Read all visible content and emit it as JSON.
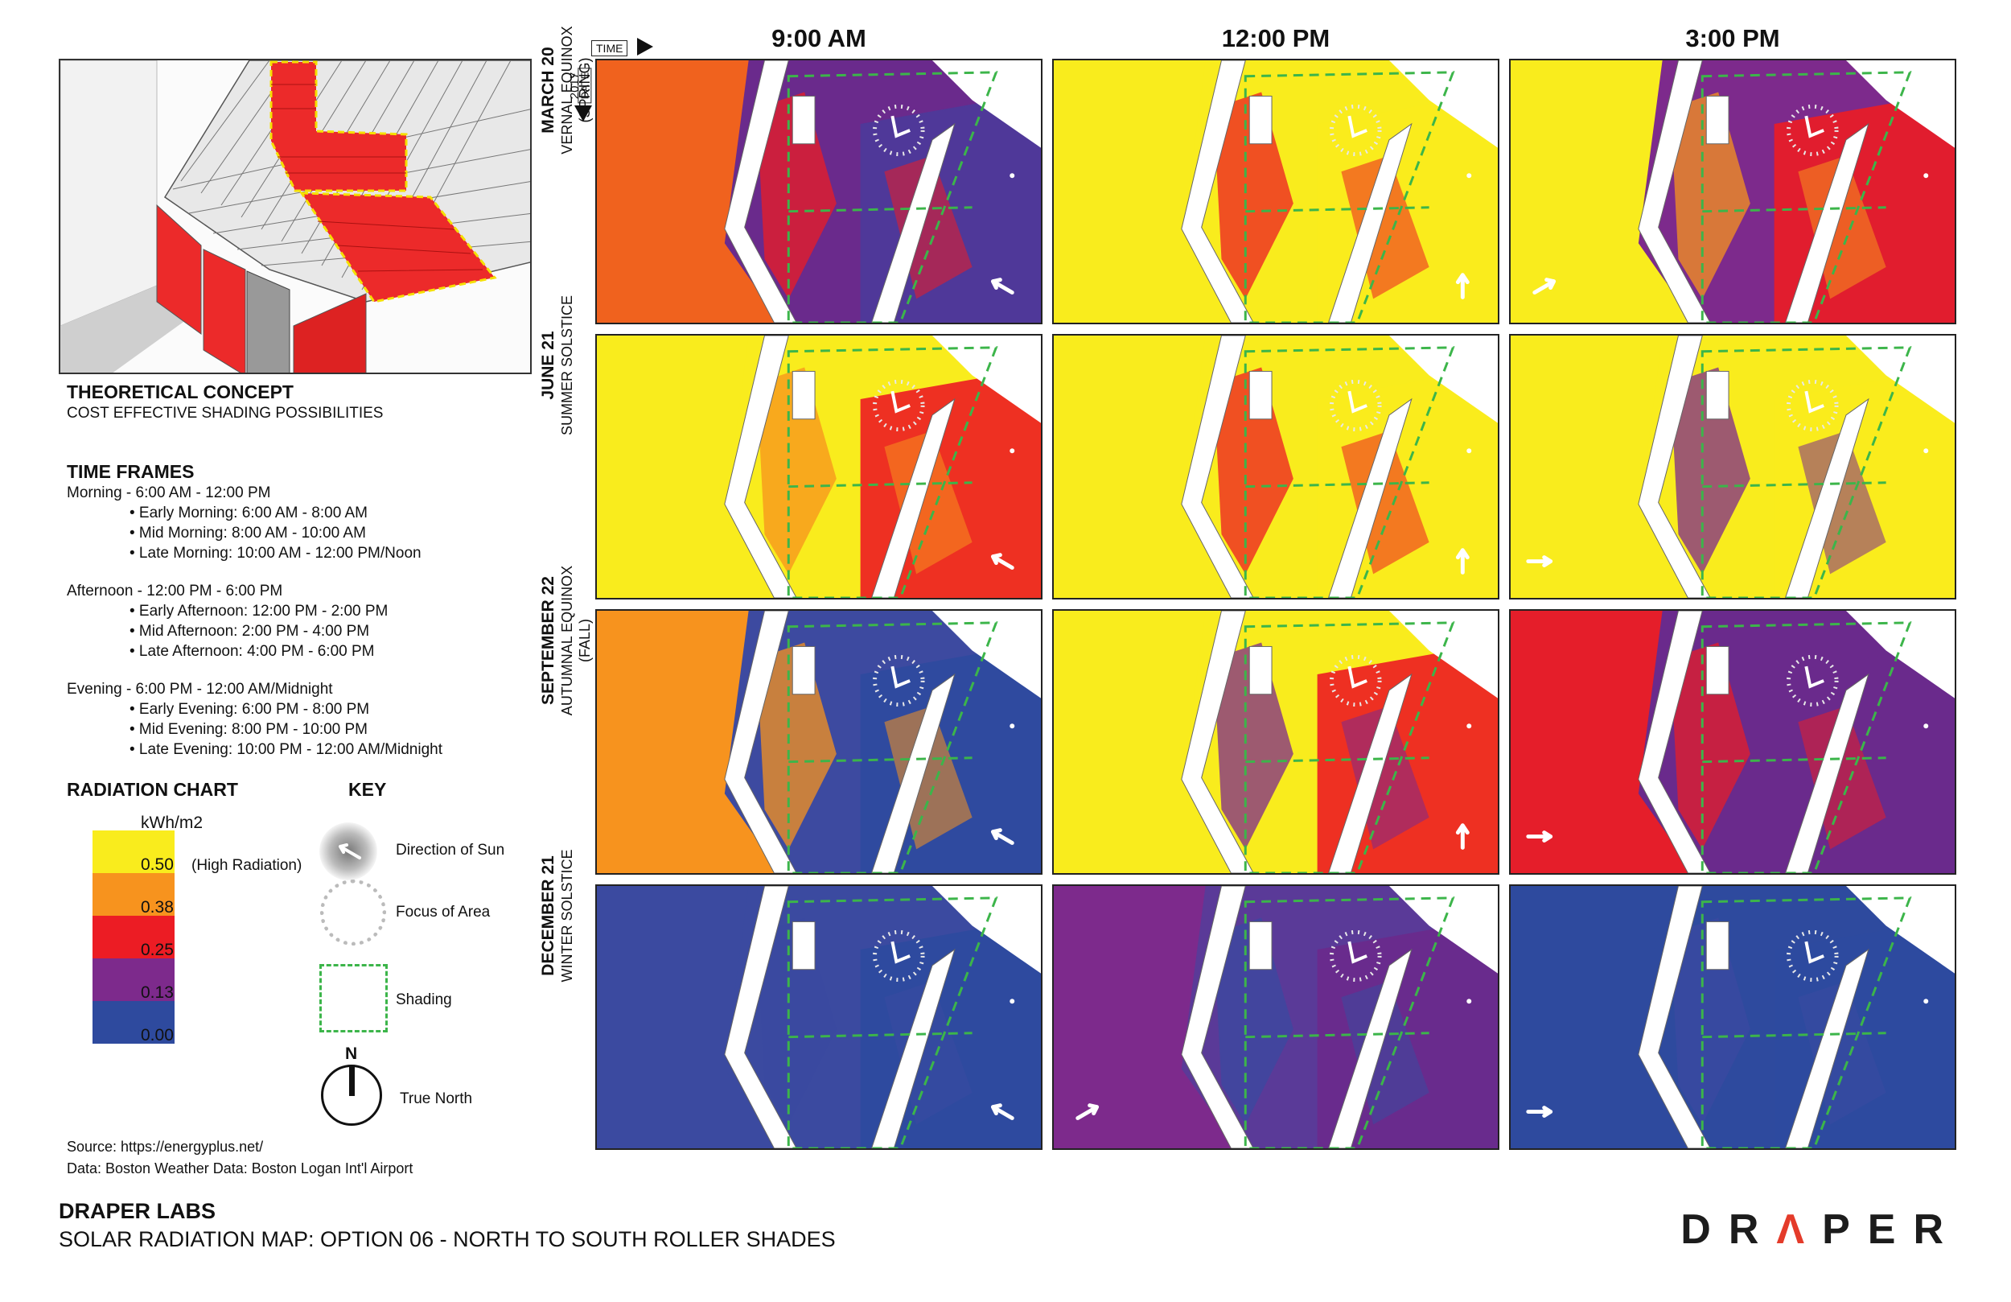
{
  "concept": {
    "title": "THEORETICAL CONCEPT",
    "subtitle": "COST EFFECTIVE SHADING POSSIBILITIES"
  },
  "time_frames": {
    "title": "TIME FRAMES",
    "morning": "Morning - 6:00 AM - 12:00 PM",
    "morning_items": [
      "• Early Morning: 6:00 AM - 8:00 AM",
      "• Mid Morning: 8:00 AM - 10:00 AM",
      "• Late Morning: 10:00 AM - 12:00 PM/Noon"
    ],
    "afternoon": "Afternoon - 12:00 PM - 6:00 PM",
    "afternoon_items": [
      "• Early Afternoon: 12:00 PM - 2:00 PM",
      "• Mid Afternoon: 2:00 PM - 4:00 PM",
      "• Late Afternoon: 4:00 PM - 6:00 PM"
    ],
    "evening": "Evening - 6:00 PM - 12:00 AM/Midnight",
    "evening_items": [
      "• Early Evening: 6:00 PM - 8:00 PM",
      "• Mid Evening: 8:00 PM - 10:00 PM",
      "• Late Evening: 10:00 PM - 12:00 AM/Midnight"
    ]
  },
  "radiation_chart": {
    "title": "RADIATION CHART",
    "unit": "kWh/m2",
    "high_note": "(High Radiation)",
    "ticks": [
      "0.50",
      "0.38",
      "0.25",
      "0.13",
      "0.00"
    ],
    "colors": [
      "#f9ec1d",
      "#f7931e",
      "#ec1c24",
      "#7d2a8c",
      "#2e4a9e"
    ]
  },
  "key": {
    "title": "KEY",
    "sun": "Direction of Sun",
    "focus": "Focus of Area",
    "shading": "Shading",
    "north_letter": "N",
    "north": "True North"
  },
  "source": {
    "line1": "Source: https://energyplus.net/",
    "line2": "Data: Boston Weather Data: Boston Logan Int'l Airport"
  },
  "footer": {
    "title": "DRAPER LABS",
    "subtitle": "SOLAR RADIATION MAP: OPTION 06 - NORTH TO SOUTH ROLLER SHADES",
    "logo_pre": "DR",
    "logo_mid": "Λ",
    "logo_post": "PER"
  },
  "axis": {
    "time": "TIME",
    "date": "DATE",
    "year": "2017"
  },
  "columns": [
    "9:00 AM",
    "12:00 PM",
    "3:00 PM"
  ],
  "rows": [
    {
      "date": "MARCH 20",
      "event": "VERNAL EQUINOX",
      "extra": "(SPRING)"
    },
    {
      "date": "JUNE 21",
      "event": "SUMMER SOLSTICE",
      "extra": ""
    },
    {
      "date": "SEPTEMBER 22",
      "event": "AUTUMNAL EQUINOX",
      "extra": "(FALL)"
    },
    {
      "date": "DECEMBER 21",
      "event": "WINTER SOLSTICE",
      "extra": ""
    }
  ],
  "panels": [
    [
      {
        "left": "#f0621e",
        "mid": "#6a2a8c",
        "right": "#4c3a9a",
        "accent": "#ec1c24",
        "sun": "nw"
      },
      {
        "left": "#f9ec1d",
        "mid": "#f9ec1d",
        "right": "#f9ec1d",
        "accent": "#ec1c24",
        "sun": "n"
      },
      {
        "left": "#f9ec1d",
        "mid": "#7d2a8c",
        "right": "#ec1c24",
        "accent": "#f7931e",
        "sun": "ne"
      }
    ],
    [
      {
        "left": "#f9ec1d",
        "mid": "#f9ec1d",
        "right": "#ec1c24",
        "accent": "#f7931e",
        "sun": "nw"
      },
      {
        "left": "#f9ec1d",
        "mid": "#f9ec1d",
        "right": "#f9ec1d",
        "accent": "#ec1c24",
        "sun": "n"
      },
      {
        "left": "#f9ec1d",
        "mid": "#f9ec1d",
        "right": "#f9ec1d",
        "accent": "#7d2a8c",
        "sun": "e"
      }
    ],
    [
      {
        "left": "#f7931e",
        "mid": "#3d4aa0",
        "right": "#2e4a9e",
        "accent": "#f7931e",
        "sun": "nw"
      },
      {
        "left": "#f9ec1d",
        "mid": "#f9ec1d",
        "right": "#ec1c24",
        "accent": "#7d2a8c",
        "sun": "n"
      },
      {
        "left": "#e51e2a",
        "mid": "#6a2a8c",
        "right": "#6a2a8c",
        "accent": "#e51e2a",
        "sun": "e"
      }
    ],
    [
      {
        "left": "#3b4aa0",
        "mid": "#3b4aa0",
        "right": "#2e4a9e",
        "accent": "#3b4aa0",
        "sun": "nw"
      },
      {
        "left": "#7d2a8c",
        "mid": "#5a3a98",
        "right": "#6a2a8c",
        "accent": "#3b4aa0",
        "sun": "ne"
      },
      {
        "left": "#2e4a9e",
        "mid": "#2e4a9e",
        "right": "#2e4a9e",
        "accent": "#3b4aa0",
        "sun": "e"
      }
    ]
  ]
}
